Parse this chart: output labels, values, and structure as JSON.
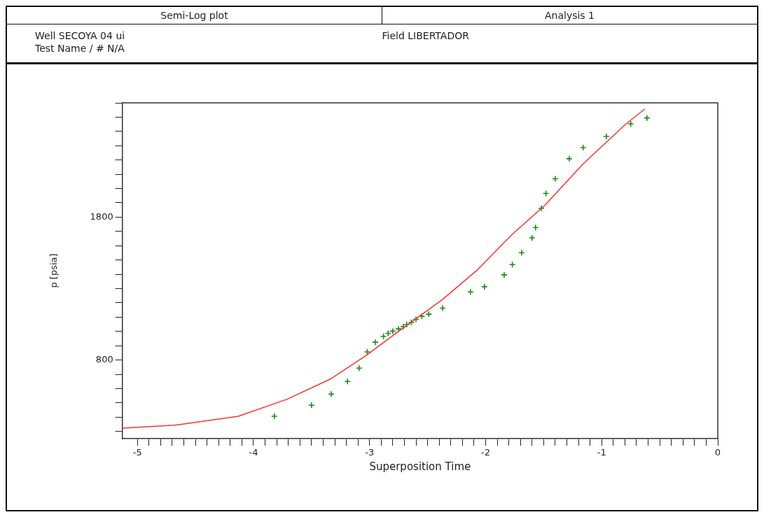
{
  "chart_data": {
    "type": "scatter",
    "title": "Semi-Log plot",
    "subtitle": "Analysis 1",
    "xlabel": "Superposition Time",
    "ylabel": "p [psia]",
    "annotations": [
      "Well SECOYA 04 ui",
      "Field LIBERTADOR",
      "Test Name / # N/A"
    ],
    "xlim": [
      -5.13,
      0
    ],
    "ylim": [
      250,
      2600
    ],
    "xticks": [
      -5,
      {
        "value": -4.9,
        "label": null
      },
      {
        "value": -4.8,
        "label": null
      },
      {
        "value": -4.7,
        "label": null
      },
      {
        "value": -4.6,
        "label": null
      },
      {
        "value": -4.5,
        "label": null
      },
      {
        "value": -4.4,
        "label": null
      },
      {
        "value": -4.3,
        "label": null
      },
      {
        "value": -4.2,
        "label": null
      },
      {
        "value": -4.1,
        "label": null
      },
      -4,
      {
        "value": -3.9,
        "label": null
      },
      {
        "value": -3.8,
        "label": null
      },
      {
        "value": -3.7,
        "label": null
      },
      {
        "value": -3.6,
        "label": null
      },
      {
        "value": -3.5,
        "label": null
      },
      {
        "value": -3.4,
        "label": null
      },
      {
        "value": -3.3,
        "label": null
      },
      {
        "value": -3.2,
        "label": null
      },
      {
        "value": -3.1,
        "label": null
      },
      -3,
      {
        "value": -2.9,
        "label": null
      },
      {
        "value": -2.8,
        "label": null
      },
      {
        "value": -2.7,
        "label": null
      },
      {
        "value": -2.6,
        "label": null
      },
      {
        "value": -2.5,
        "label": null
      },
      {
        "value": -2.4,
        "label": null
      },
      {
        "value": -2.3,
        "label": null
      },
      {
        "value": -2.2,
        "label": null
      },
      {
        "value": -2.1,
        "label": null
      },
      -2,
      {
        "value": -1.9,
        "label": null
      },
      {
        "value": -1.8,
        "label": null
      },
      {
        "value": -1.7,
        "label": null
      },
      {
        "value": -1.6,
        "label": null
      },
      {
        "value": -1.5,
        "label": null
      },
      {
        "value": -1.4,
        "label": null
      },
      {
        "value": -1.3,
        "label": null
      },
      {
        "value": -1.2,
        "label": null
      },
      {
        "value": -1.1,
        "label": null
      },
      -1,
      {
        "value": -0.9,
        "label": null
      },
      {
        "value": -0.8,
        "label": null
      },
      {
        "value": -0.7,
        "label": null
      },
      {
        "value": -0.6,
        "label": null
      },
      {
        "value": -0.5,
        "label": null
      },
      {
        "value": -0.4,
        "label": null
      },
      {
        "value": -0.3,
        "label": null
      },
      {
        "value": -0.2,
        "label": null
      },
      {
        "value": -0.1,
        "label": null
      },
      0
    ],
    "yticks": [
      {
        "value": 300,
        "label": null
      },
      {
        "value": 400,
        "label": null
      },
      {
        "value": 500,
        "label": null
      },
      {
        "value": 600,
        "label": null
      },
      {
        "value": 700,
        "label": null
      },
      800,
      {
        "value": 900,
        "label": null
      },
      {
        "value": 1000,
        "label": null
      },
      {
        "value": 1100,
        "label": null
      },
      {
        "value": 1200,
        "label": null
      },
      {
        "value": 1300,
        "label": null
      },
      {
        "value": 1400,
        "label": null
      },
      {
        "value": 1500,
        "label": null
      },
      {
        "value": 1600,
        "label": null
      },
      {
        "value": 1700,
        "label": null
      },
      1800,
      {
        "value": 1900,
        "label": null
      },
      {
        "value": 2000,
        "label": null
      },
      {
        "value": 2100,
        "label": null
      },
      {
        "value": 2200,
        "label": null
      },
      {
        "value": 2300,
        "label": null
      },
      {
        "value": 2400,
        "label": null
      },
      {
        "value": 2500,
        "label": null
      },
      {
        "value": 2600,
        "label": null
      }
    ],
    "legend": false,
    "grid": false,
    "marker": "cross",
    "series": [
      {
        "color": "#1a8a1a",
        "x": [
          -3.82,
          -3.5,
          -3.33,
          -3.19,
          -3.09,
          -3.02,
          -2.95,
          -2.88,
          -2.84,
          -2.8,
          -2.75,
          -2.71,
          -2.68,
          -2.64,
          -2.6,
          -2.55,
          -2.49,
          -2.37,
          -2.13,
          -2.01,
          -1.84,
          -1.77,
          -1.69,
          -1.6,
          -1.57,
          -1.52,
          -1.48,
          -1.4,
          -1.28,
          -1.16,
          -0.96,
          -0.75,
          -0.61
        ],
        "values": [
          407,
          484,
          562,
          650,
          743,
          857,
          925,
          966,
          987,
          1002,
          1018,
          1033,
          1049,
          1064,
          1085,
          1106,
          1121,
          1163,
          1277,
          1313,
          1396,
          1468,
          1551,
          1655,
          1727,
          1862,
          1966,
          2069,
          2209,
          2287,
          2365,
          2453,
          2494
        ]
      },
      {
        "type": "line",
        "color": "#ff3030",
        "marker": "none",
        "x": [
          -5.13,
          -4.68,
          -4.13,
          -3.71,
          -3.34,
          -3.04,
          -2.74,
          -2.37,
          -2.07,
          -1.77,
          -1.49,
          -1.16,
          -0.79,
          -0.63
        ],
        "values": [
          324,
          344,
          407,
          526,
          666,
          826,
          1007,
          1225,
          1432,
          1681,
          1883,
          2173,
          2453,
          2556
        ]
      }
    ]
  }
}
